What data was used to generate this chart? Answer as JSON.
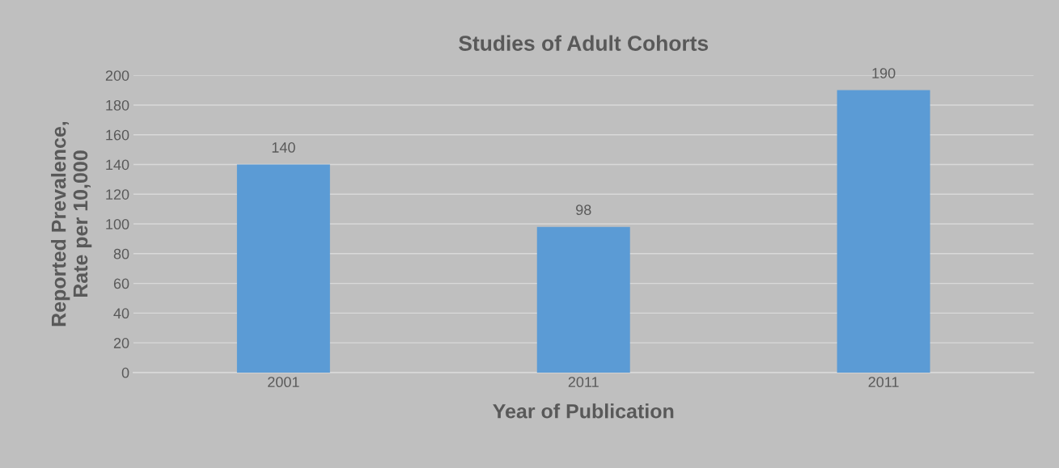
{
  "chart_data": {
    "type": "bar",
    "title": "Studies of Adult Cohorts",
    "xlabel": "Year of Publication",
    "ylabel": "Reported Prevalence,\nRate per 10,000",
    "categories": [
      "2001",
      "2011",
      "2011"
    ],
    "series": [
      {
        "color": "#5b9bd5",
        "values": [
          140,
          98,
          190
        ]
      }
    ],
    "ylim": [
      0,
      200
    ],
    "yticks": [
      0,
      20,
      40,
      60,
      80,
      100,
      120,
      140,
      160,
      180,
      200
    ],
    "grid": "y",
    "data_labels": true
  }
}
